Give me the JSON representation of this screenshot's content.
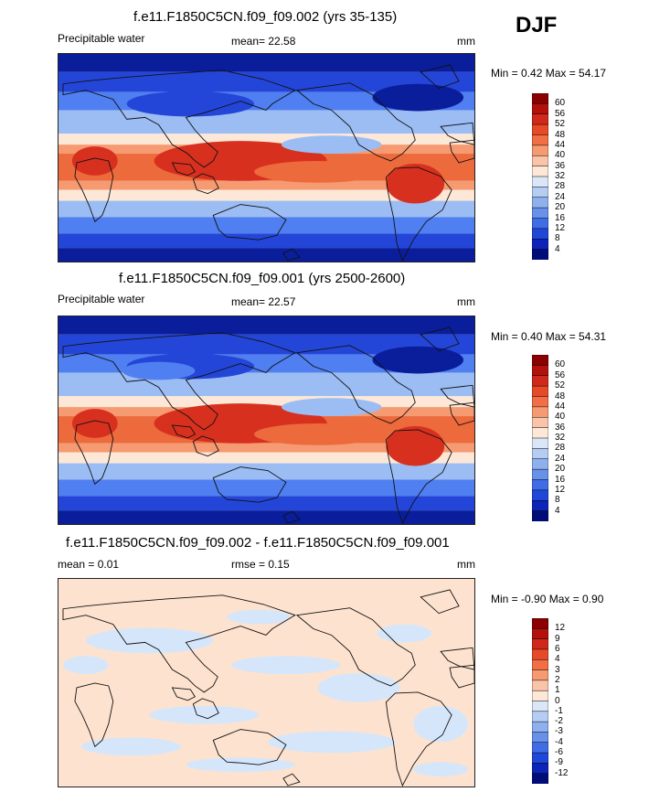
{
  "season": "DJF",
  "panels": [
    {
      "title": "f.e11.F1850C5CN.f09_f09.002 (yrs 35-135)",
      "left_label": "Precipitable water",
      "center_label": "mean=  22.58",
      "units": "mm",
      "minmax": "Min =   0.42 Max =   54.17",
      "colorbar_labels": [
        "60",
        "56",
        "52",
        "48",
        "44",
        "40",
        "36",
        "32",
        "28",
        "24",
        "20",
        "16",
        "12",
        "8",
        "4"
      ],
      "colorbar_colors": [
        "#8b0000",
        "#b3120c",
        "#d0281a",
        "#e64a28",
        "#f26e44",
        "#f69a72",
        "#f9c4a8",
        "#fde7d7",
        "#dbe7f8",
        "#b6cdf3",
        "#8eb1ee",
        "#6891ea",
        "#3f6de6",
        "#1f48d8",
        "#0c24b8",
        "#000c78"
      ]
    },
    {
      "title": "f.e11.F1850C5CN.f09_f09.001 (yrs 2500-2600)",
      "left_label": "Precipitable water",
      "center_label": "mean=  22.57",
      "units": "mm",
      "minmax": "Min =   0.40 Max =   54.31",
      "colorbar_labels": [
        "60",
        "56",
        "52",
        "48",
        "44",
        "40",
        "36",
        "32",
        "28",
        "24",
        "20",
        "16",
        "12",
        "8",
        "4"
      ],
      "colorbar_colors": [
        "#8b0000",
        "#b3120c",
        "#d0281a",
        "#e64a28",
        "#f26e44",
        "#f69a72",
        "#f9c4a8",
        "#fde7d7",
        "#dbe7f8",
        "#b6cdf3",
        "#8eb1ee",
        "#6891ea",
        "#3f6de6",
        "#1f48d8",
        "#0c24b8",
        "#000c78"
      ]
    },
    {
      "title": "f.e11.F1850C5CN.f09_f09.002 - f.e11.F1850C5CN.f09_f09.001",
      "left_label": "mean =   0.01",
      "center_label": "rmse =   0.15",
      "units": "mm",
      "minmax": "Min =  -0.90 Max =   0.90",
      "colorbar_labels": [
        "12",
        "9",
        "6",
        "4",
        "3",
        "2",
        "1",
        "0",
        "-1",
        "-2",
        "-3",
        "-4",
        "-6",
        "-9",
        "-12"
      ],
      "colorbar_colors": [
        "#8b0000",
        "#b3120c",
        "#d0281a",
        "#e64a28",
        "#f26e44",
        "#f69a72",
        "#f9c4a8",
        "#fde7d7",
        "#dbe7f8",
        "#b6cdf3",
        "#8eb1ee",
        "#6891ea",
        "#3f6de6",
        "#1f48d8",
        "#0c24b8",
        "#000c78"
      ]
    }
  ],
  "field_colors": {
    "deep_blue": "#0a1e9c",
    "blue": "#2446d8",
    "mid_blue": "#4f7ff0",
    "light_blue": "#9cbdf4",
    "pale": "#fde7d7",
    "warm": "#f69a72",
    "orange": "#ec6a3c",
    "red": "#d7301f",
    "diff_pale_orange": "#fde3cf",
    "diff_pale_blue": "#d6e6fa",
    "coast": "#111111"
  }
}
